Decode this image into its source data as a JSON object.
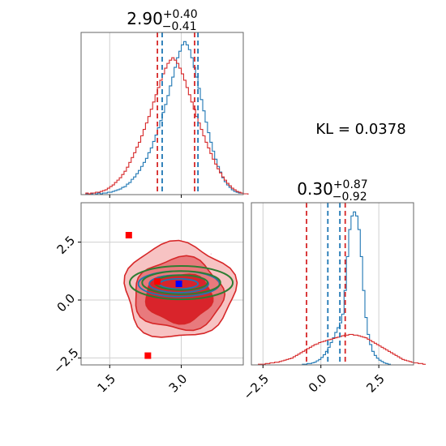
{
  "chart_data": [
    {
      "type": "histogram",
      "panel": "top-left",
      "title_main": "2.90",
      "title_sup": "+0.40",
      "title_sub": "−0.41",
      "xlim": [
        0.9,
        4.3
      ],
      "x_ticks": [
        1.5,
        3.0
      ],
      "grid": true,
      "series": [
        {
          "color": "#1f77b4",
          "bin_start": 1.0,
          "bin_width": 0.05,
          "counts": [
            1,
            1,
            1,
            0,
            1,
            2,
            1,
            2,
            2,
            3,
            3,
            4,
            5,
            6,
            7,
            9,
            10,
            13,
            15,
            19,
            22,
            26,
            30,
            35,
            40,
            45,
            52,
            58,
            66,
            74,
            83,
            92,
            102,
            112,
            123,
            135,
            146,
            158,
            170,
            178,
            186,
            190,
            186,
            180,
            170,
            158,
            146,
            132,
            118,
            104,
            90,
            77,
            65,
            54,
            44,
            35,
            28,
            21,
            16,
            12,
            9,
            6,
            4,
            3,
            2,
            2,
            1,
            1
          ]
        },
        {
          "color": "#d62728",
          "bin_start": 1.0,
          "bin_width": 0.05,
          "counts": [
            2,
            1,
            2,
            2,
            3,
            3,
            4,
            5,
            6,
            8,
            10,
            12,
            15,
            18,
            21,
            25,
            29,
            34,
            40,
            46,
            52,
            59,
            65,
            73,
            81,
            89,
            97,
            106,
            115,
            124,
            133,
            142,
            150,
            157,
            163,
            167,
            170,
            167,
            163,
            157,
            150,
            142,
            133,
            124,
            115,
            106,
            97,
            89,
            81,
            73,
            65,
            58,
            51,
            44,
            38,
            32,
            27,
            22,
            18,
            14,
            11,
            8,
            6,
            4,
            3,
            2,
            1,
            1
          ]
        }
      ],
      "vlines": [
        {
          "x": 2.5,
          "color": "#d62728"
        },
        {
          "x": 2.6,
          "color": "#1f77b4"
        },
        {
          "x": 3.28,
          "color": "#d62728"
        },
        {
          "x": 3.35,
          "color": "#1f77b4"
        }
      ]
    },
    {
      "type": "contour",
      "panel": "bottom-left",
      "xlim": [
        0.9,
        4.3
      ],
      "ylim": [
        -2.8,
        4.2
      ],
      "x_ticks": [
        1.5,
        3.0
      ],
      "x_tick_labels": [
        "1.5",
        "3.0"
      ],
      "y_ticks": [
        -2.5,
        0.0,
        2.5
      ],
      "y_tick_labels": [
        "−2.5",
        "0.0",
        "2.5"
      ],
      "grid": true,
      "red_regions": [
        {
          "level": "outer",
          "fill": "#f7c3c3",
          "cx": 2.95,
          "cy": 0.4,
          "rx": 1.15,
          "ry": 2.05
        },
        {
          "level": "mid",
          "fill": "#e87a7d",
          "cx": 2.95,
          "cy": 0.25,
          "rx": 0.93,
          "ry": 1.55
        },
        {
          "level": "inner",
          "fill": "#d9242b",
          "cx": 2.95,
          "cy": 0.1,
          "rx": 0.7,
          "ry": 1.05
        }
      ],
      "blue_contours": [
        {
          "cx": 2.95,
          "cy": 0.7,
          "rx": 0.85,
          "ry": 0.55
        },
        {
          "cx": 2.95,
          "cy": 0.7,
          "rx": 0.62,
          "ry": 0.38
        },
        {
          "cx": 2.95,
          "cy": 0.7,
          "rx": 0.4,
          "ry": 0.22
        }
      ],
      "green_contours": [
        {
          "cx": 3.0,
          "cy": 0.75,
          "rx": 1.08,
          "ry": 0.72
        },
        {
          "cx": 3.0,
          "cy": 0.75,
          "rx": 0.82,
          "ry": 0.5
        },
        {
          "cx": 3.0,
          "cy": 0.75,
          "rx": 0.55,
          "ry": 0.32
        }
      ],
      "markers": [
        {
          "x": 1.9,
          "y": 2.8,
          "color": "#ff0000"
        },
        {
          "x": 2.3,
          "y": -2.4,
          "color": "#ff0000"
        },
        {
          "x": 2.5,
          "y": 0.8,
          "color": "#ff0000"
        },
        {
          "x": 2.95,
          "y": 0.7,
          "color": "#0000ff"
        }
      ]
    },
    {
      "type": "histogram",
      "panel": "bottom-right",
      "title_main": "0.30",
      "title_sup": "+0.87",
      "title_sub": "−0.92",
      "xlim": [
        -3.0,
        4.0
      ],
      "x_ticks": [
        -2.5,
        0.0,
        2.5
      ],
      "x_tick_labels": [
        "−2.5",
        "0.0",
        "2.5"
      ],
      "grid": true,
      "series": [
        {
          "color": "#1f77b4",
          "bin_start": -0.8,
          "bin_width": 0.1,
          "counts": [
            1,
            1,
            2,
            2,
            3,
            4,
            6,
            8,
            11,
            15,
            20,
            26,
            33,
            40,
            48,
            55,
            62,
            75,
            110,
            160,
            200,
            220,
            226,
            220,
            200,
            160,
            110,
            70,
            45,
            30,
            20,
            14,
            10,
            7,
            5,
            3,
            2,
            1
          ]
        },
        {
          "color": "#d62728",
          "bin_start": -2.7,
          "bin_width": 0.1,
          "counts": [
            1,
            1,
            1,
            2,
            2,
            3,
            3,
            4,
            4,
            5,
            6,
            7,
            8,
            9,
            10,
            12,
            14,
            16,
            18,
            20,
            22,
            24,
            26,
            28,
            30,
            31,
            33,
            34,
            35,
            36,
            37,
            38,
            39,
            40,
            41,
            42,
            43,
            44,
            44,
            45,
            45,
            44,
            44,
            43,
            42,
            41,
            40,
            38,
            36,
            34,
            32,
            30,
            28,
            26,
            24,
            22,
            20,
            18,
            16,
            14,
            12,
            10,
            8,
            7,
            6,
            5,
            4,
            3,
            3,
            2,
            2,
            1
          ]
        }
      ],
      "vlines": [
        {
          "x": -0.62,
          "color": "#d62728"
        },
        {
          "x": 0.3,
          "color": "#1f77b4"
        },
        {
          "x": 0.82,
          "color": "#1f77b4"
        },
        {
          "x": 1.05,
          "color": "#d62728"
        }
      ]
    }
  ],
  "annotation": {
    "kl_text": "KL = 0.0378"
  }
}
